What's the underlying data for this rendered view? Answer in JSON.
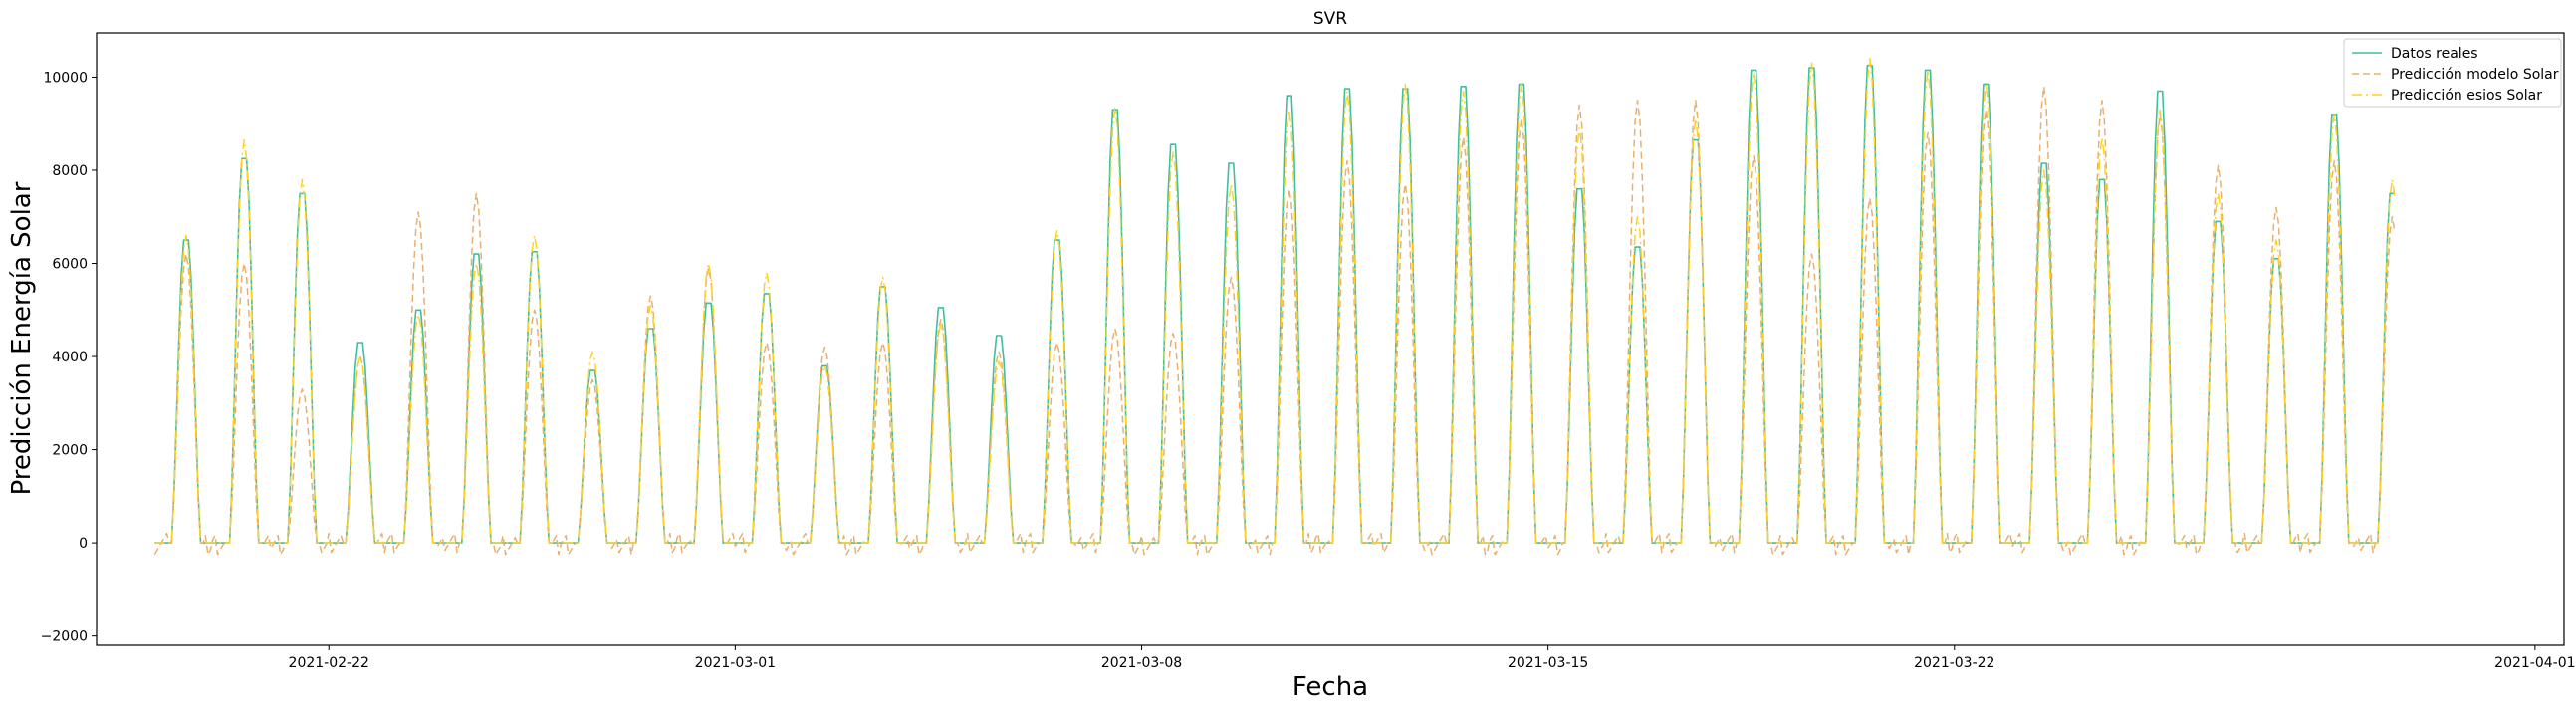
{
  "chart_data": {
    "type": "line",
    "title": "SVR",
    "xlabel": "Fecha",
    "ylabel": "Predicción Energía Solar",
    "x_start": "2021-02-19",
    "x_end": "2021-03-29",
    "xlim": [
      "2021-02-18T00:00",
      "2021-04-01T12:00"
    ],
    "ylim": [
      -2200,
      10950
    ],
    "x_ticks": [
      "2021-02-22",
      "2021-03-01",
      "2021-03-08",
      "2021-03-15",
      "2021-03-22",
      "2021-04-01"
    ],
    "y_ticks": [
      -2000,
      0,
      2000,
      4000,
      6000,
      8000,
      10000
    ],
    "legend_position": "top-right",
    "grid": false,
    "series": [
      {
        "name": "Datos reales",
        "color": "#3fbf9f",
        "style": "solid",
        "daily_peaks": [
          6500,
          8250,
          7500,
          4300,
          5000,
          6200,
          6250,
          3700,
          4600,
          5150,
          5350,
          3800,
          5500,
          5050,
          4450,
          6500,
          9300,
          8550,
          8150,
          9600,
          9750,
          9750,
          9800,
          9850,
          7600,
          6350,
          8650,
          10150,
          10200,
          10250,
          10150,
          9850,
          8150,
          7800,
          9700,
          6900,
          6100,
          9200,
          7500
        ]
      },
      {
        "name": "Predicción modelo Solar",
        "color": "#e8b070",
        "style": "dashed",
        "daily_peaks": [
          6200,
          6000,
          3300,
          4000,
          7100,
          7500,
          5000,
          3500,
          5300,
          5900,
          4300,
          4200,
          4300,
          4800,
          4100,
          4300,
          4600,
          4500,
          5700,
          7600,
          8200,
          7700,
          8700,
          9100,
          9400,
          9500,
          9500,
          8300,
          6200,
          7400,
          8800,
          9300,
          9800,
          9500,
          9200,
          8100,
          7200,
          8200,
          7000
        ]
      },
      {
        "name": "Predicción esios Solar",
        "color": "#ffd21f",
        "style": "dashdot",
        "daily_peaks": [
          6600,
          8650,
          7800,
          4000,
          4900,
          6000,
          6600,
          4100,
          5100,
          6000,
          5800,
          3800,
          5700,
          4700,
          3900,
          6700,
          9350,
          8400,
          7700,
          9300,
          9700,
          9850,
          9700,
          9850,
          8900,
          7000,
          9100,
          10100,
          10300,
          10400,
          10150,
          9850,
          8000,
          8700,
          9300,
          7500,
          6500,
          9200,
          7800
        ]
      }
    ]
  }
}
